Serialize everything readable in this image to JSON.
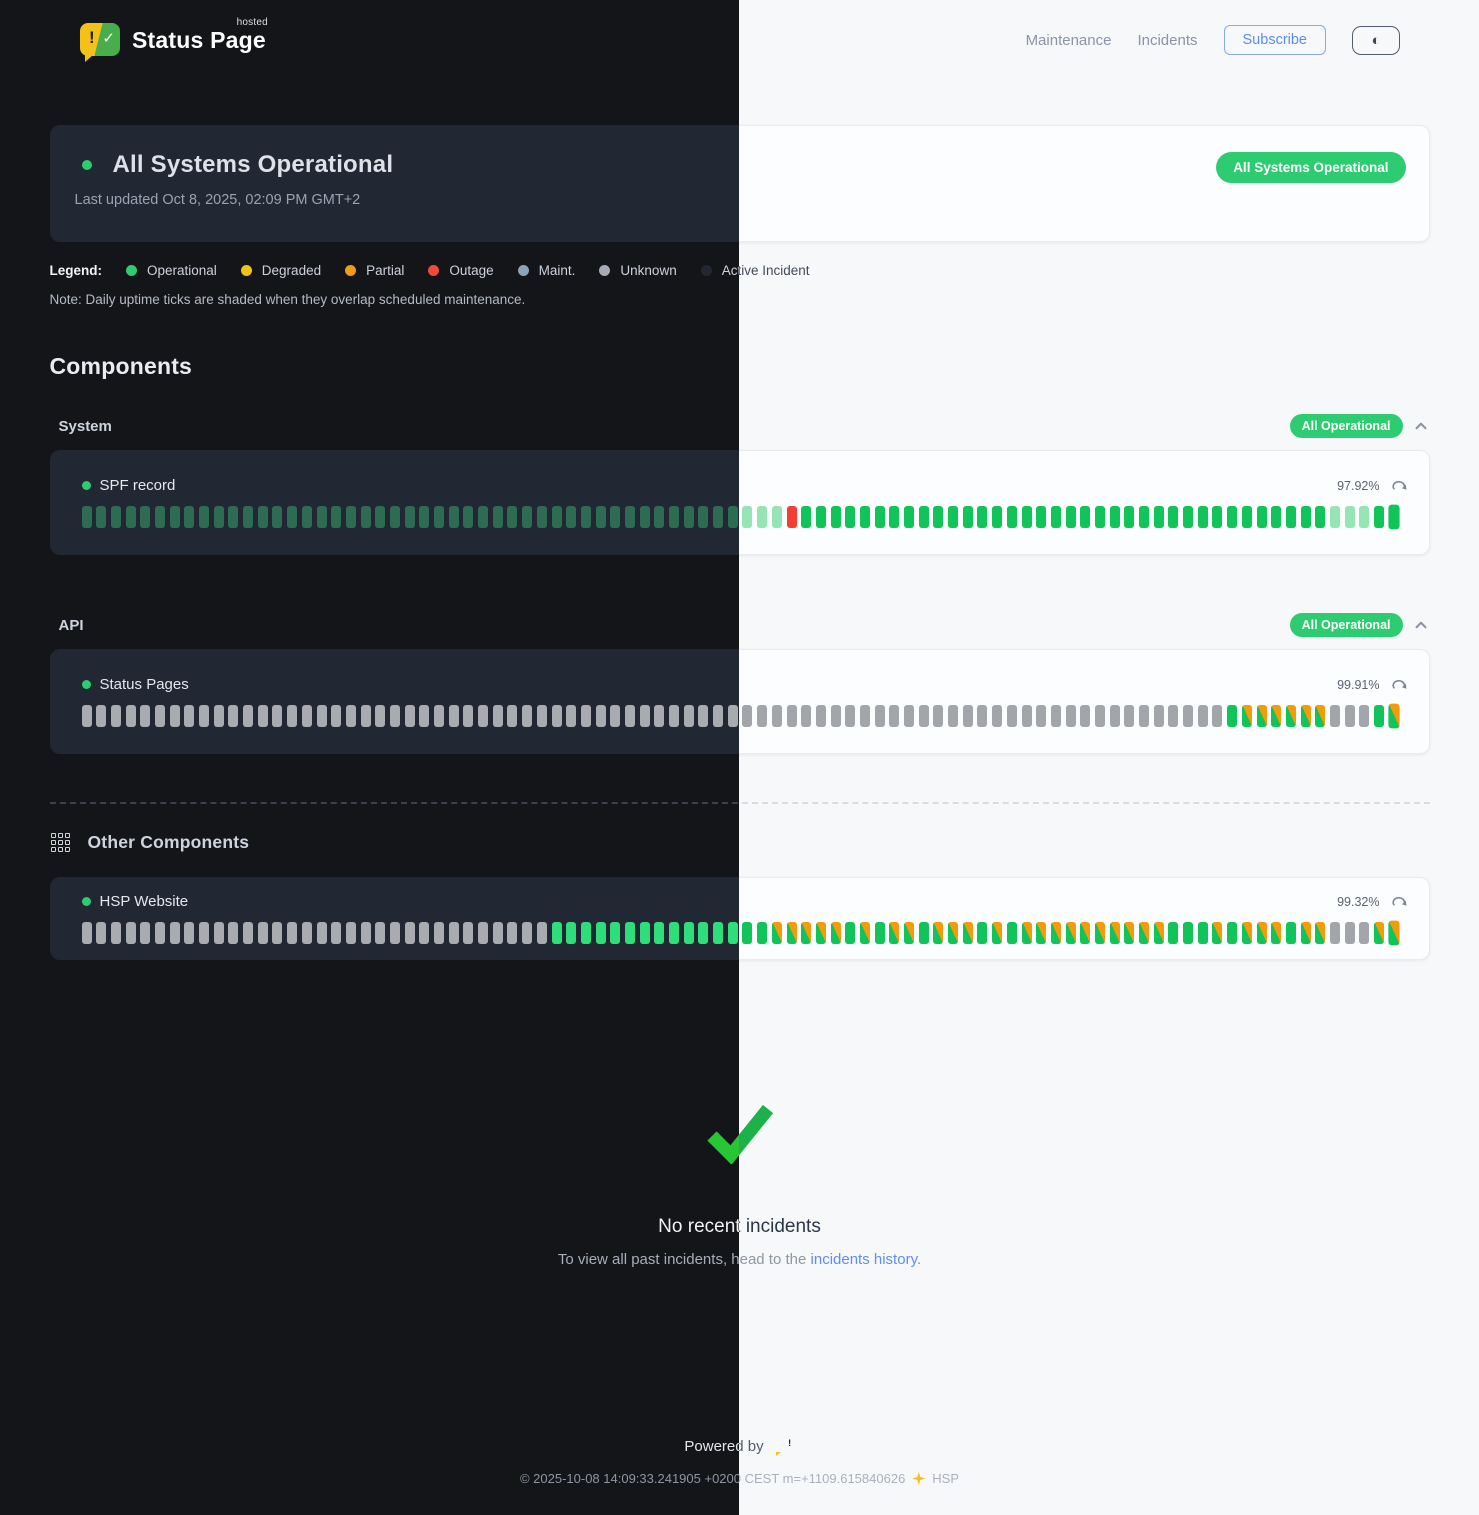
{
  "brand": {
    "name": "Status Page",
    "superscript": "hosted",
    "exclamation": "!",
    "check": "✓"
  },
  "nav": {
    "maintenance": "Maintenance",
    "incidents": "Incidents",
    "subscribe": "Subscribe",
    "theme_icon": "◐"
  },
  "banner": {
    "title": "All Systems Operational",
    "updated": "Last updated Oct 8, 2025, 02:09 PM GMT+2",
    "badge": "All Systems Operational"
  },
  "legend": {
    "label": "Legend:",
    "items": [
      {
        "name": "Operational",
        "color": "#2ecc71"
      },
      {
        "name": "Degraded",
        "color": "#f1c40f"
      },
      {
        "name": "Partial",
        "color": "#f39c12"
      },
      {
        "name": "Outage",
        "color": "#ed4c3c"
      },
      {
        "name": "Maint.",
        "color": "#8aa3b8"
      },
      {
        "name": "Unknown",
        "color": "#a6abb3"
      },
      {
        "name": "Active Incident",
        "color": "#23272f"
      }
    ]
  },
  "note": "Note: Daily uptime ticks are shaded when they overlap scheduled maintenance.",
  "components": {
    "heading": "Components",
    "tick_codes": {
      "o": "operational",
      "s": "shaded-maintenance-overlap",
      "u": "unknown",
      "r": "outage",
      "m": "operational-partial-mixed"
    },
    "groups": [
      {
        "name": "System",
        "badge": "All Operational",
        "items": [
          {
            "name": "SPF record",
            "uptime": "97.92%",
            "ticks": "ssssssssssssssssssssssssssssssssssssssssssssssssroooooooooooooooooooooooooooooooooooosssoo"
          }
        ]
      },
      {
        "name": "API",
        "badge": "All Operational",
        "items": [
          {
            "name": "Status Pages",
            "uptime": "99.91%",
            "ticks": "uuuuuuuuuuuuuuuuuuuuuuuuuuuuuuuuuuuuuuuuuuuuuuuuuuuuuuuuuuuuuuuuuuuuuuuuuuuuuuommmmmmuuuom"
          }
        ]
      }
    ],
    "other": {
      "heading": "Other Components",
      "items": [
        {
          "name": "HSP Website",
          "uptime": "99.32%",
          "ticks": "uuuuuuuuuuuuuuuuuuuuuuuuuuuuuuuuooooooooooooooommmmmomommommmomommmmmmmmmmooomommmommuuumm"
        }
      ]
    }
  },
  "incidents": {
    "title": "No recent incidents",
    "subtext": "To view all past incidents, head to the ",
    "link": "incidents history."
  },
  "footer": {
    "powered": "Powered by",
    "copyright_before": "© 2025-10-08 14:09:33.241905 +0200 CEST m=+1109.615840626",
    "copyright_after": "HSP"
  },
  "colors": {
    "accent_green": "#2ecc71",
    "light_tick_green": "#10c45a",
    "light_tick_orange": "#f59b0a",
    "outage_red": "#f23e33",
    "link_blue": "#5f8ef0",
    "logo_yellow": "#f3c119",
    "logo_green": "#49ad4d",
    "dark_bg": "#141519",
    "light_bg": "#f7f8fa"
  }
}
